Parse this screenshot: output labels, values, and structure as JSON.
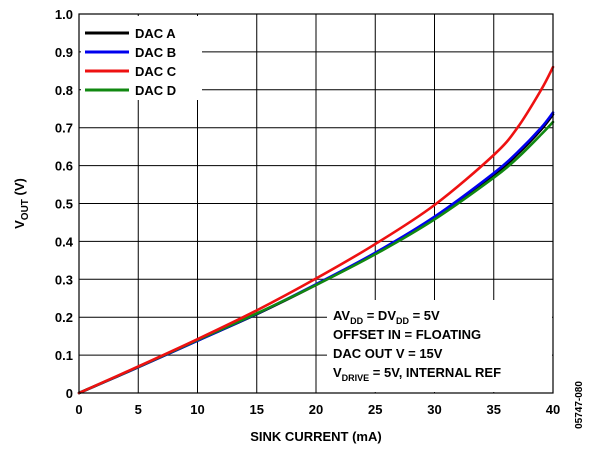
{
  "chart_data": {
    "type": "line",
    "title": "",
    "xlabel": "SINK CURRENT (mA)",
    "ylabel": {
      "main": "V",
      "sub": "OUT",
      "unit": " (V)"
    },
    "xlim": [
      0,
      40
    ],
    "ylim": [
      0,
      1.0
    ],
    "x_ticks": [
      0,
      5,
      10,
      15,
      20,
      25,
      30,
      35,
      40
    ],
    "y_ticks": [
      0,
      0.1,
      0.2,
      0.3,
      0.4,
      0.5,
      0.6,
      0.7,
      0.8,
      0.9,
      1.0
    ],
    "x_tick_labels": [
      "0",
      "5",
      "10",
      "15",
      "20",
      "25",
      "30",
      "35",
      "40"
    ],
    "y_tick_labels": [
      "0",
      "0.1",
      "0.2",
      "0.3",
      "0.4",
      "0.5",
      "0.6",
      "0.7",
      "0.8",
      "0.9",
      "1.0"
    ],
    "grid": true,
    "legend_position": "top-left",
    "x": [
      0,
      5,
      10,
      15,
      20,
      25,
      30,
      35,
      37,
      39,
      40
    ],
    "series": [
      {
        "name": "DAC A",
        "color": "#000000",
        "values": [
          0.0,
          0.068,
          0.138,
          0.208,
          0.285,
          0.368,
          0.462,
          0.575,
          0.63,
          0.695,
          0.735
        ]
      },
      {
        "name": "DAC B",
        "color": "#0000ee",
        "values": [
          0.0,
          0.068,
          0.138,
          0.209,
          0.287,
          0.37,
          0.465,
          0.58,
          0.635,
          0.7,
          0.74
        ]
      },
      {
        "name": "DAC C",
        "color": "#ee1111",
        "values": [
          0.0,
          0.07,
          0.142,
          0.218,
          0.302,
          0.393,
          0.496,
          0.628,
          0.7,
          0.8,
          0.86
        ]
      },
      {
        "name": "DAC D",
        "color": "#118811",
        "values": [
          0.0,
          0.069,
          0.14,
          0.21,
          0.285,
          0.366,
          0.458,
          0.568,
          0.62,
          0.682,
          0.715
        ]
      }
    ],
    "annotation_lines": [
      [
        {
          "t": "AV"
        },
        {
          "t": "DD",
          "sub": true
        },
        {
          "t": " = DV"
        },
        {
          "t": "DD",
          "sub": true
        },
        {
          "t": " = 5V"
        }
      ],
      [
        {
          "t": "OFFSET IN = FLOATING"
        }
      ],
      [
        {
          "t": "DAC OUT V = 15V"
        }
      ],
      [
        {
          "t": "V"
        },
        {
          "t": "DRIVE",
          "sub": true
        },
        {
          "t": " = 5V, INTERNAL REF"
        }
      ]
    ],
    "figure_id": "05747-080"
  }
}
